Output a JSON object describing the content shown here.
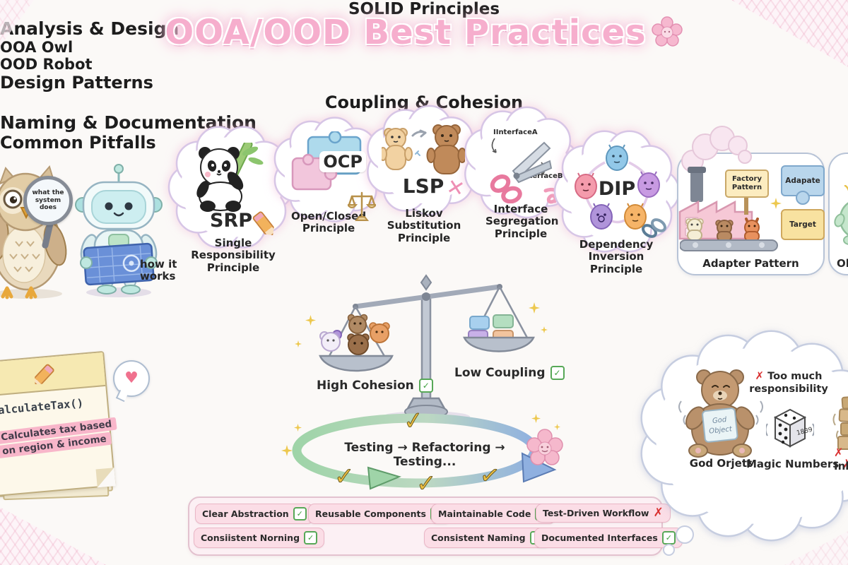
{
  "colors": {
    "title_pink": "#f6aecd",
    "check_green": "#57a857",
    "cross_red": "#d93030",
    "badge_pink": "#fbdde6",
    "cloud_border": "#d7c6e6"
  },
  "icons": {
    "check": "✓",
    "cross": "✗",
    "x_mark": "✕",
    "heart": "♥"
  },
  "title": {
    "text": "OOA/OOD Best Practices"
  },
  "analysis": {
    "heading": "Analysis & Design",
    "owl_label": "OOA Owl",
    "robot_label": "OOD Robot",
    "magnifier_text": "what the system does",
    "robot_caption": "how it works"
  },
  "solid": {
    "heading": "SOLID Principles",
    "srp": {
      "abbr": "SRP",
      "caption": "Single Responsibility Principle"
    },
    "ocp": {
      "abbr": "OCP",
      "caption": "Open/Closed Principle"
    },
    "lsp": {
      "abbr": "LSP",
      "caption": "Liskov Substitution Principle"
    },
    "isp": {
      "caption": "Interface Segregation Principle",
      "label_a": "IInterfaceA",
      "label_b": "IInterfaceB"
    },
    "dip": {
      "abbr": "DIP",
      "caption": "Dependency Inversion Principle"
    }
  },
  "patterns": {
    "heading": "Design Patterns",
    "adapter": {
      "sign": "Factory Pattern",
      "puzzle_top": "Adapate",
      "puzzle_bottom": "Target",
      "caption": "Adapter Pattern"
    },
    "observer": {
      "caption": "Observer Pattern"
    }
  },
  "coupling": {
    "heading": "Coupling & Cohesion",
    "left_label": "High Cohesion",
    "right_label": "Low Coupling"
  },
  "documentation": {
    "heading": "Naming & Documentation",
    "code": "calculateTax()",
    "comment_line1": "// Calculates tax based",
    "comment_line2": "on region & income"
  },
  "workflow": {
    "loop_text": "Testing → Refactoring → Testing..."
  },
  "pitfalls": {
    "heading": "Common Pitfalls",
    "god_card_line1": "God",
    "god_card_line2": "Object",
    "god_caption": "God Orjett",
    "too_much_line1": "Too much",
    "too_much_line2": "responsibility",
    "dice_text": "1839",
    "magic_caption": "Magic Numbers",
    "inheritance_caption": "Inheritance"
  },
  "badges": {
    "row1": [
      {
        "label": "Clear Abstraction",
        "status": "check"
      },
      {
        "label": "Reusable Components",
        "status": "check"
      },
      {
        "label": "Maintainable Code",
        "status": "check"
      },
      {
        "label": "Test-Driven Workflow",
        "status": "cross"
      }
    ],
    "row2": [
      {
        "label": "Consiistent Norning",
        "status": "check"
      },
      {
        "label": "Consistent Naming",
        "status": "check"
      },
      {
        "label": "Documented Interfaces",
        "status": "check"
      }
    ]
  }
}
